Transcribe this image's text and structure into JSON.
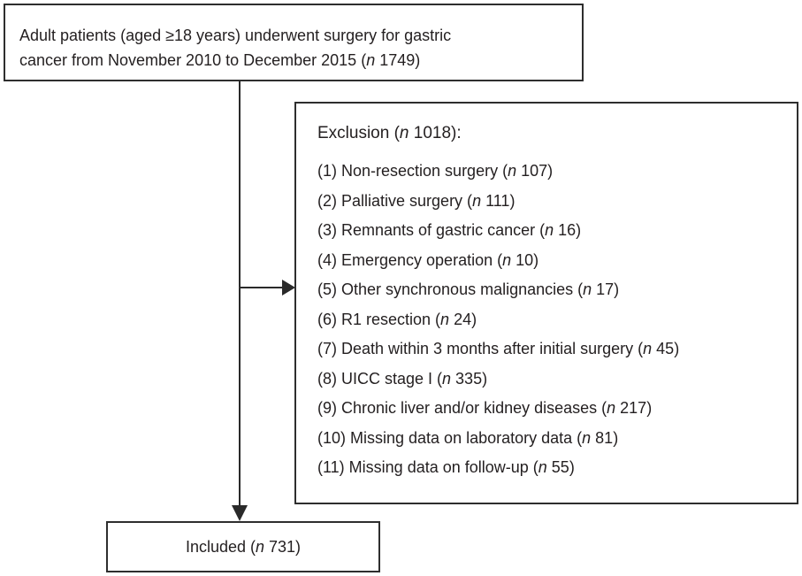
{
  "diagram": {
    "type": "patient-flowchart",
    "colors": {
      "border": "#2e2e2e",
      "text": "#231f20",
      "line": "#2a2a2a",
      "background": "#ffffff"
    },
    "top_box": {
      "line1": "Adult patients (aged ≥18 years) underwent surgery for gastric",
      "line2_pre": "cancer from November 2010 to December 2015 (",
      "n": "n",
      "line2_post": " 1749)"
    },
    "exclusion_box": {
      "header_pre": "Exclusion (",
      "n": "n",
      "header_post": " 1018):",
      "items": [
        {
          "pre": "(1) Non-resection surgery (",
          "n": "n",
          "post": " 107)"
        },
        {
          "pre": "(2) Palliative surgery (",
          "n": "n",
          "post": " 111)"
        },
        {
          "pre": "(3) Remnants of gastric cancer (",
          "n": "n",
          "post": " 16)"
        },
        {
          "pre": "(4) Emergency operation (",
          "n": "n",
          "post": " 10)"
        },
        {
          "pre": "(5) Other synchronous malignancies (",
          "n": "n",
          "post": " 17)"
        },
        {
          "pre": "(6) R1 resection (",
          "n": "n",
          "post": " 24)"
        },
        {
          "pre": "(7) Death within 3 months after initial surgery (",
          "n": "n",
          "post": " 45)"
        },
        {
          "pre": "(8) UICC stage I (",
          "n": "n",
          "post": " 335)"
        },
        {
          "pre": "(9) Chronic liver and/or kidney diseases (",
          "n": "n",
          "post": " 217)"
        },
        {
          "pre": "(10) Missing data on laboratory data (",
          "n": "n",
          "post": " 81)"
        },
        {
          "pre": "(11) Missing data on follow-up (",
          "n": "n",
          "post": " 55)"
        }
      ]
    },
    "included_box": {
      "pre": "Included (",
      "n": "n",
      "post": " 731)"
    }
  }
}
